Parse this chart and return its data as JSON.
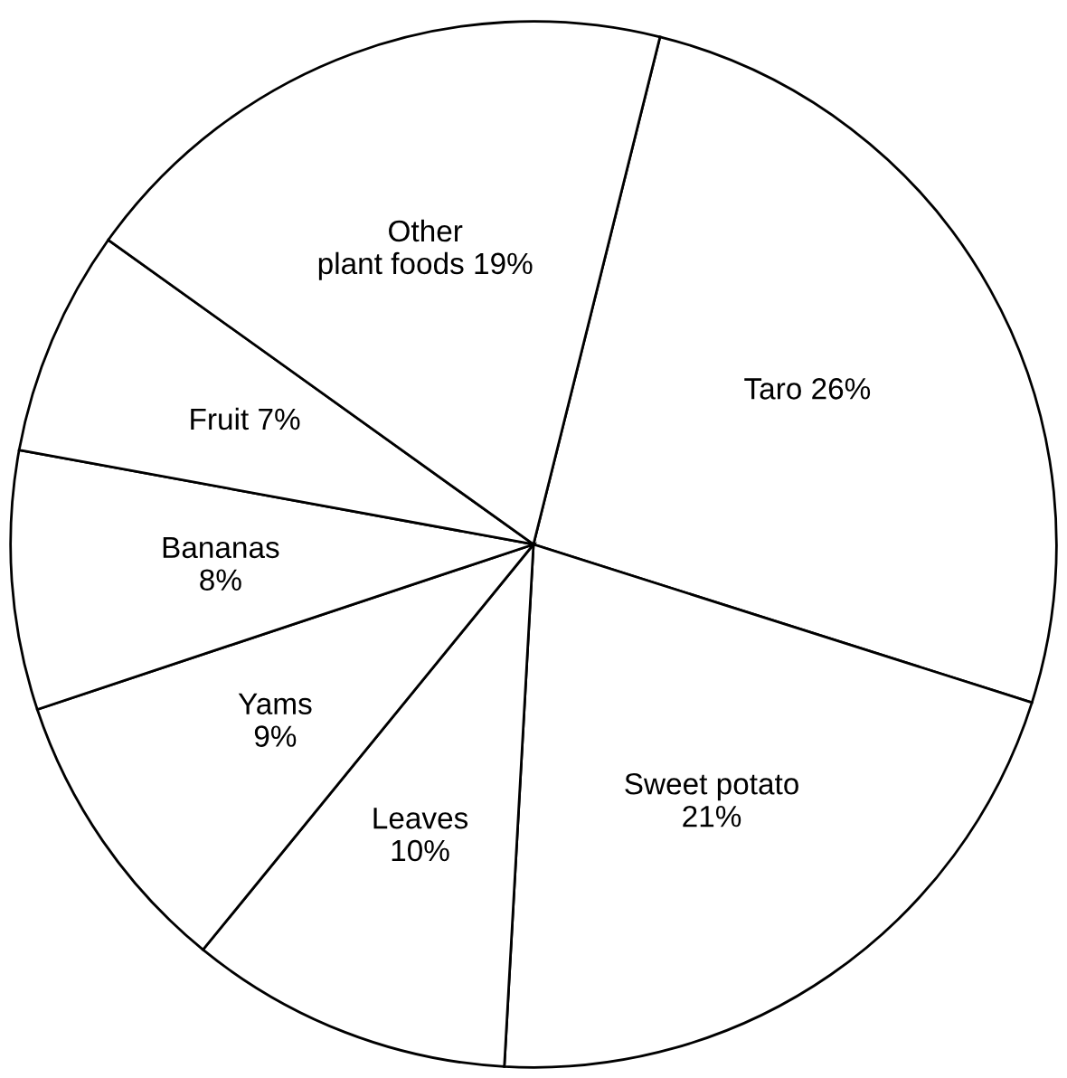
{
  "chart_data": {
    "type": "pie",
    "categories": [
      "Taro 26%",
      "Sweet potato\n21%",
      "Leaves\n10%",
      "Yams\n9%",
      "Bananas\n8%",
      "Fruit 7%",
      "Other\nplant foods 19%"
    ],
    "values": [
      26,
      21,
      10,
      9,
      8,
      7,
      19
    ],
    "colors": [
      "#ffffff",
      "#ffffff",
      "#ffffff",
      "#ffffff",
      "#ffffff",
      "#ffffff",
      "#ffffff"
    ]
  }
}
